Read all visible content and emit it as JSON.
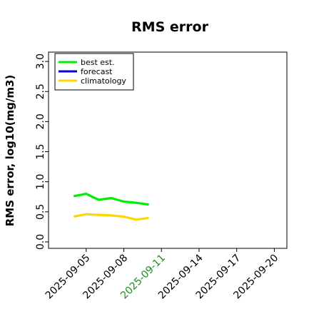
{
  "chart_data": {
    "type": "line",
    "title": "RMS error",
    "xlabel": "",
    "ylabel": "RMS error, log10(mg/m3)",
    "ylim": [
      0.0,
      3.1
    ],
    "yticks": [
      "0.0",
      "0.5",
      "1.0",
      "1.5",
      "2.0",
      "2.5",
      "3.0"
    ],
    "xlim": [
      "2025-09-02",
      "2025-09-21"
    ],
    "xticks": [
      "2025-09-05",
      "2025-09-08",
      "2025-09-11",
      "2025-09-14",
      "2025-09-17",
      "2025-09-20"
    ],
    "highlighted_xtick": "2025-09-11",
    "highlight_color": "#228b22",
    "legend_position": "top-left",
    "grid": false,
    "series": [
      {
        "name": "best est.",
        "color": "#00ee00",
        "x": [
          "2025-09-04",
          "2025-09-05",
          "2025-09-06",
          "2025-09-07",
          "2025-09-08",
          "2025-09-09",
          "2025-09-10"
        ],
        "values": [
          0.76,
          0.8,
          0.7,
          0.73,
          0.67,
          0.65,
          0.62
        ]
      },
      {
        "name": "forecast",
        "color": "#0000ee",
        "x": [],
        "values": []
      },
      {
        "name": "climatology",
        "color": "#ffd700",
        "x": [
          "2025-09-04",
          "2025-09-05",
          "2025-09-06",
          "2025-09-07",
          "2025-09-08",
          "2025-09-09",
          "2025-09-10"
        ],
        "values": [
          0.42,
          0.46,
          0.45,
          0.44,
          0.42,
          0.37,
          0.4
        ]
      }
    ]
  }
}
